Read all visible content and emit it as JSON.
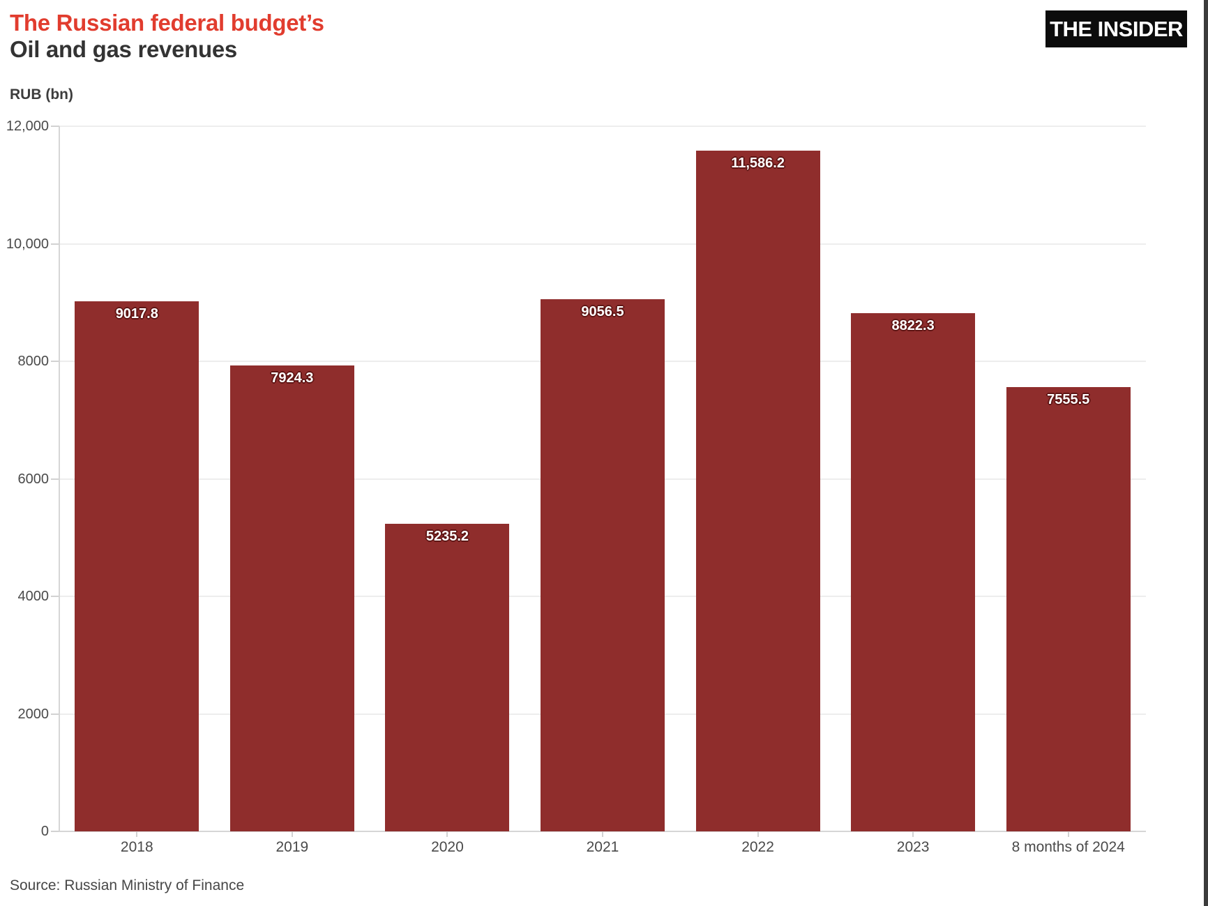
{
  "header": {
    "title_line1": "The Russian federal budget’s",
    "title_line2": "Oil and gas revenues",
    "logo_text": "THE INSIDER"
  },
  "footer": {
    "source": "Source: Russian Ministry of Finance"
  },
  "colors": {
    "title_accent": "#e13c2e",
    "title_dark": "#333333",
    "bar_fill": "#8f2d2c",
    "bar_label_text": "#ffffff",
    "bar_label_outline": "#5e1514",
    "axis_text": "#4a4a4a",
    "logo_background": "#0c0c0c",
    "logo_text_color": "#ffffff"
  },
  "chart_data": {
    "type": "bar",
    "title": "The Russian federal budget’s Oil and gas revenues",
    "xlabel": "",
    "ylabel": "RUB (bn)",
    "categories": [
      "2018",
      "2019",
      "2020",
      "2021",
      "2022",
      "2023",
      "8 months of 2024"
    ],
    "values": [
      9017.8,
      7924.3,
      5235.2,
      9056.5,
      11586.2,
      8822.3,
      7555.5
    ],
    "value_labels": [
      "9017.8",
      "7924.3",
      "5235.2",
      "9056.5",
      "11,586.2",
      "8822.3",
      "7555.5"
    ],
    "ylim": [
      0,
      12000
    ],
    "yticks": [
      {
        "value": 12000,
        "label": "12,000"
      },
      {
        "value": 10000,
        "label": "10,000"
      },
      {
        "value": 8000,
        "label": "8000"
      },
      {
        "value": 6000,
        "label": "6000"
      },
      {
        "value": 4000,
        "label": "4000"
      },
      {
        "value": 2000,
        "label": "2000"
      },
      {
        "value": 0,
        "label": "0"
      }
    ],
    "grid": "horizontal",
    "legend": "none",
    "bar_color": "#8f2d2c"
  }
}
